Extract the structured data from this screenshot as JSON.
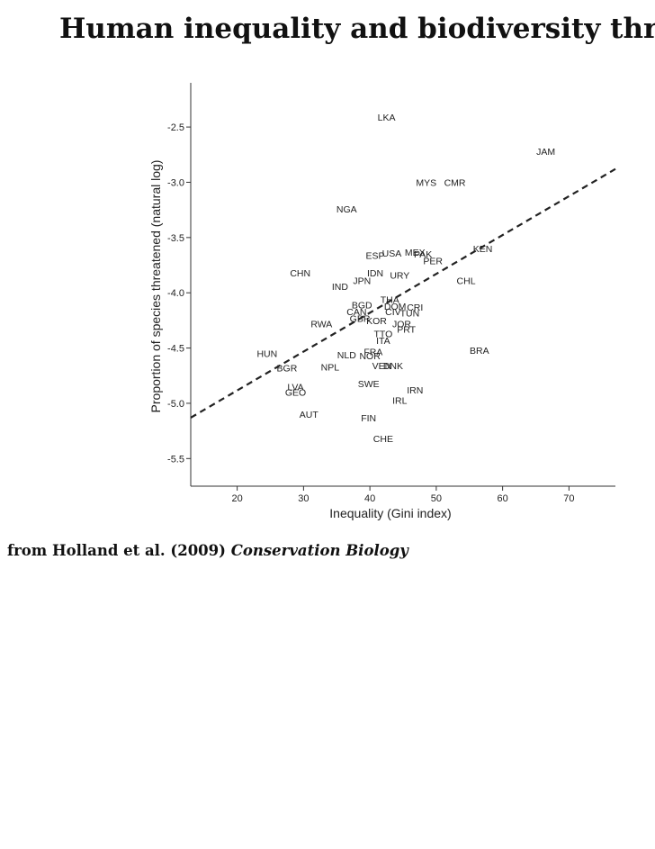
{
  "slide": {
    "title": "Human inequality and biodiversity thr",
    "source_prefix": "from Holland et al. (2009) ",
    "source_journal": "Conservation Biology"
  },
  "chart_data": {
    "type": "scatter",
    "xlabel": "Inequality (Gini index)",
    "ylabel": "Proportion of species threatened (natural log)",
    "xlim": [
      13,
      77
    ],
    "ylim": [
      -5.75,
      -2.1
    ],
    "xticks": [
      20,
      30,
      40,
      50,
      60,
      70
    ],
    "yticks": [
      -2.5,
      -3.0,
      -3.5,
      -4.0,
      -4.5,
      -5.0,
      -5.5
    ],
    "ytick_labels": [
      "-2.5",
      "-3.0",
      "-3.5",
      "-4.0",
      "-4.5",
      "-5.0",
      "-5.5"
    ],
    "grid": false,
    "trend_line": {
      "style": "dashed",
      "x": [
        13,
        77
      ],
      "y": [
        -5.13,
        -2.88
      ]
    },
    "points": [
      {
        "label": "LKA",
        "x": 42.5,
        "y": -2.41
      },
      {
        "label": "JAM",
        "x": 66.5,
        "y": -2.72
      },
      {
        "label": "MYS",
        "x": 48.5,
        "y": -3.0
      },
      {
        "label": "CMR",
        "x": 52.8,
        "y": -3.0
      },
      {
        "label": "NGA",
        "x": 36.5,
        "y": -3.24
      },
      {
        "label": "ESP",
        "x": 40.8,
        "y": -3.66
      },
      {
        "label": "USA",
        "x": 43.3,
        "y": -3.64
      },
      {
        "label": "MEX",
        "x": 46.8,
        "y": -3.63
      },
      {
        "label": "PAK",
        "x": 48.0,
        "y": -3.65
      },
      {
        "label": "PER",
        "x": 49.5,
        "y": -3.71
      },
      {
        "label": "KEN",
        "x": 57.0,
        "y": -3.6
      },
      {
        "label": "CHN",
        "x": 29.5,
        "y": -3.82
      },
      {
        "label": "IDN",
        "x": 40.8,
        "y": -3.82
      },
      {
        "label": "JPN",
        "x": 38.8,
        "y": -3.89
      },
      {
        "label": "URY",
        "x": 44.5,
        "y": -3.84
      },
      {
        "label": "CHL",
        "x": 54.5,
        "y": -3.89
      },
      {
        "label": "IND",
        "x": 35.5,
        "y": -3.94
      },
      {
        "label": "THA",
        "x": 43.0,
        "y": -4.06
      },
      {
        "label": "BGD",
        "x": 38.8,
        "y": -4.11
      },
      {
        "label": "DOM",
        "x": 43.8,
        "y": -4.12
      },
      {
        "label": "CRI",
        "x": 46.8,
        "y": -4.13
      },
      {
        "label": "CAN",
        "x": 38.0,
        "y": -4.17
      },
      {
        "label": "CIV",
        "x": 43.5,
        "y": -4.17
      },
      {
        "label": "TUN",
        "x": 46.0,
        "y": -4.18
      },
      {
        "label": "GBR",
        "x": 38.5,
        "y": -4.23
      },
      {
        "label": "KOR",
        "x": 41.0,
        "y": -4.25
      },
      {
        "label": "JOR",
        "x": 44.8,
        "y": -4.28
      },
      {
        "label": "RWA",
        "x": 32.7,
        "y": -4.28
      },
      {
        "label": "PRT",
        "x": 45.5,
        "y": -4.33
      },
      {
        "label": "TTO",
        "x": 42.0,
        "y": -4.37
      },
      {
        "label": "ITA",
        "x": 42.0,
        "y": -4.43
      },
      {
        "label": "BRA",
        "x": 56.5,
        "y": -4.52
      },
      {
        "label": "HUN",
        "x": 24.5,
        "y": -4.55
      },
      {
        "label": "FRA",
        "x": 40.5,
        "y": -4.53
      },
      {
        "label": "NLD",
        "x": 36.5,
        "y": -4.56
      },
      {
        "label": "NOR",
        "x": 40.0,
        "y": -4.57
      },
      {
        "label": "BGR",
        "x": 27.5,
        "y": -4.68
      },
      {
        "label": "NPL",
        "x": 34.0,
        "y": -4.67
      },
      {
        "label": "VEN",
        "x": 41.8,
        "y": -4.66
      },
      {
        "label": "DNK",
        "x": 43.5,
        "y": -4.66
      },
      {
        "label": "SWE",
        "x": 39.8,
        "y": -4.82
      },
      {
        "label": "LVA",
        "x": 28.8,
        "y": -4.85
      },
      {
        "label": "GEO",
        "x": 28.8,
        "y": -4.9
      },
      {
        "label": "IRN",
        "x": 46.8,
        "y": -4.88
      },
      {
        "label": "IRL",
        "x": 44.5,
        "y": -4.97
      },
      {
        "label": "AUT",
        "x": 30.8,
        "y": -5.1
      },
      {
        "label": "FIN",
        "x": 39.8,
        "y": -5.13
      },
      {
        "label": "CHE",
        "x": 42.0,
        "y": -5.32
      }
    ]
  }
}
